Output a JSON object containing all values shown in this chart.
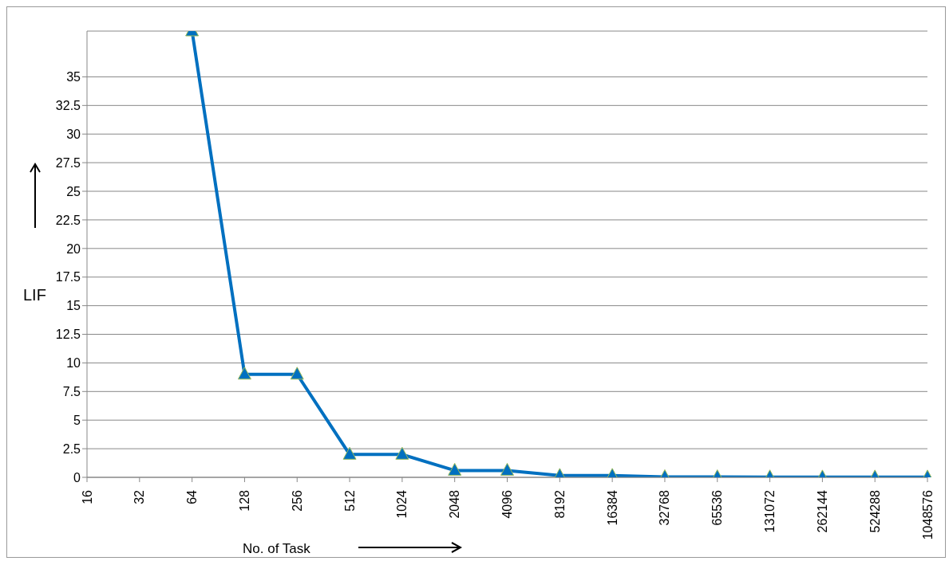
{
  "chart_data": {
    "type": "line",
    "xlabel": "No. of Task",
    "ylabel": "LIF",
    "categories": [
      "16",
      "32",
      "64",
      "128",
      "256",
      "512",
      "1024",
      "2048",
      "4096",
      "8192",
      "16384",
      "32768",
      "65536",
      "131072",
      "262144",
      "524288",
      "1048576"
    ],
    "series": [
      {
        "color": "#0070c0",
        "marker": "triangle",
        "values": [
          null,
          null,
          39,
          9,
          9,
          2,
          2,
          0.6,
          0.6,
          0.15,
          0.15,
          0.04,
          0.03,
          0.02,
          0.01,
          0.01,
          0.01
        ]
      }
    ],
    "ylim": [
      0,
      39
    ],
    "yticks": [
      0,
      2.5,
      5,
      7.5,
      10,
      12.5,
      15,
      17.5,
      20,
      22.5,
      25,
      27.5,
      30,
      32.5,
      35
    ],
    "grid": "y",
    "line_style": "solid"
  }
}
